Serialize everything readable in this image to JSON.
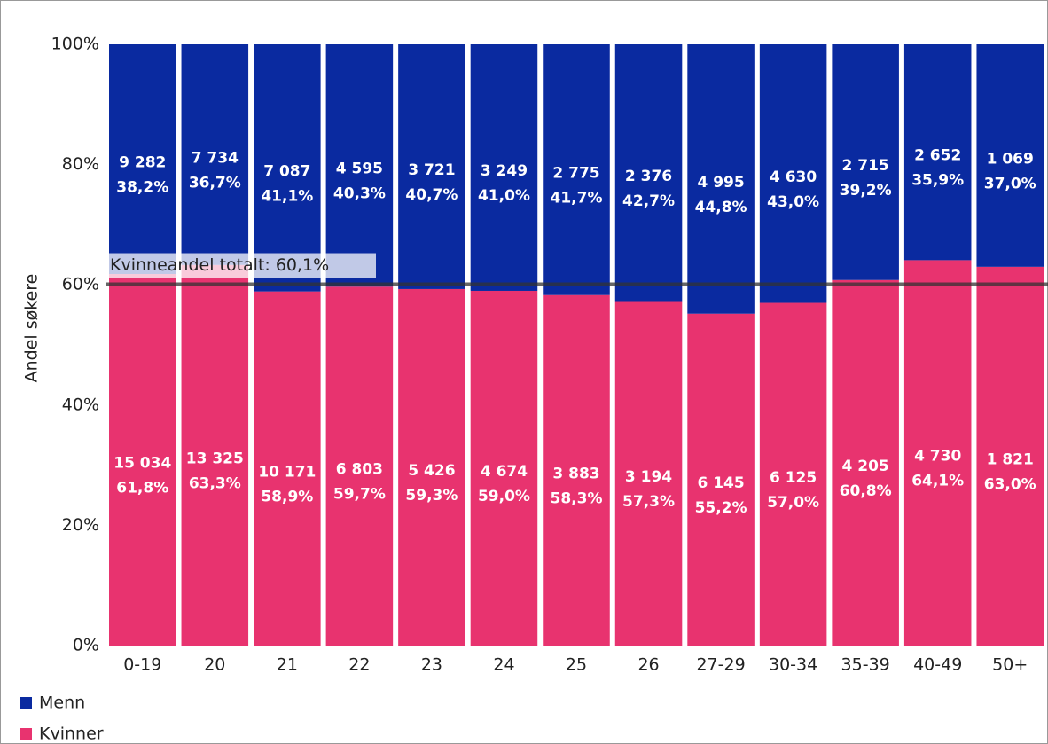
{
  "chart_data": {
    "type": "stacked_bar_100",
    "y_axis_label": "Andel søkere",
    "categories": [
      "0-19",
      "20",
      "21",
      "22",
      "23",
      "24",
      "25",
      "26",
      "27-29",
      "30-34",
      "35-39",
      "40-49",
      "50+"
    ],
    "series": [
      {
        "name": "Menn",
        "color": "#0a2aa0",
        "values": [
          38.2,
          36.7,
          41.1,
          40.3,
          40.7,
          41.0,
          41.7,
          42.7,
          44.8,
          43.0,
          39.2,
          35.9,
          37.0
        ],
        "value_labels": [
          "38,2%",
          "36,7%",
          "41,1%",
          "40,3%",
          "40,7%",
          "41,0%",
          "41,7%",
          "42,7%",
          "44,8%",
          "43,0%",
          "39,2%",
          "35,9%",
          "37,0%"
        ],
        "count_labels": [
          "9 282",
          "7 734",
          "7 087",
          "4 595",
          "3 721",
          "3 249",
          "2 775",
          "2 376",
          "4 995",
          "4 630",
          "2 715",
          "2 652",
          "1 069"
        ]
      },
      {
        "name": "Kvinner",
        "color": "#e8336f",
        "values": [
          61.8,
          63.3,
          58.9,
          59.7,
          59.3,
          59.0,
          58.3,
          57.3,
          55.2,
          57.0,
          60.8,
          64.1,
          63.0
        ],
        "value_labels": [
          "61,8%",
          "63,3%",
          "58,9%",
          "59,7%",
          "59,3%",
          "59,0%",
          "58,3%",
          "57,3%",
          "55,2%",
          "57,0%",
          "60,8%",
          "64,1%",
          "63,0%"
        ],
        "count_labels": [
          "15 034",
          "13 325",
          "10 171",
          "6 803",
          "5 426",
          "4 674",
          "3 883",
          "3 194",
          "6 145",
          "6 125",
          "4 205",
          "4 730",
          "1 821"
        ]
      }
    ],
    "ylim": [
      0,
      100
    ],
    "yticks": [
      {
        "value": 0,
        "label": "0%"
      },
      {
        "value": 20,
        "label": "20%"
      },
      {
        "value": 40,
        "label": "40%"
      },
      {
        "value": 60,
        "label": "60%"
      },
      {
        "value": 80,
        "label": "80%"
      },
      {
        "value": 100,
        "label": "100%"
      }
    ],
    "reference_line": {
      "value": 60.1,
      "label": "Kvinneandel totalt: 60,1%"
    },
    "legend": "bottom-left"
  }
}
